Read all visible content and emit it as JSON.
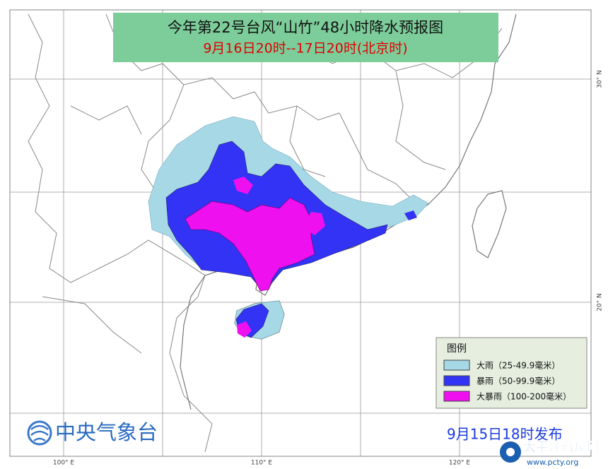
{
  "title": "今年第22号台风“山竹”48小时降水预报图",
  "subtitle": "9月16日20时--17日20时(北京时)",
  "legend": {
    "title": "图例",
    "items": [
      {
        "label": "大雨（25-49.9毫米）",
        "color": "#a6d8e6"
      },
      {
        "label": "暴雨（50-99.9毫米）",
        "color": "#3333f5"
      },
      {
        "label": "大暴雨（100-200毫米）",
        "color": "#ee10ee"
      }
    ]
  },
  "axis_labels": {
    "longitude": [
      "100° E",
      "110° E",
      "120° E"
    ],
    "latitude": [
      "30° N",
      "20° N"
    ]
  },
  "footer": {
    "agency": "中央气象台",
    "issued": "9月15日18时发布"
  },
  "watermark": {
    "name": "太平洋台风网",
    "url": "www.pcty.org"
  }
}
